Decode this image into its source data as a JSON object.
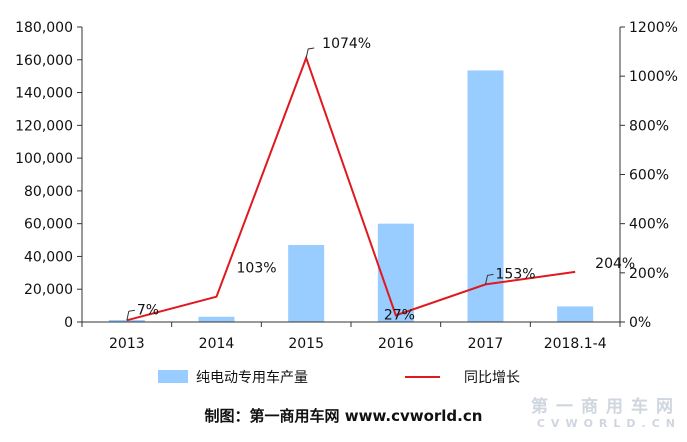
{
  "chart_data": {
    "type": "bar",
    "categories": [
      "2013",
      "2014",
      "2015",
      "2016",
      "2017",
      "2018.1-4"
    ],
    "series": [
      {
        "name": "纯电动专用车产量",
        "type": "bar",
        "axis": "left",
        "color": "#99ccff",
        "values": [
          1200,
          3200,
          47000,
          60000,
          153500,
          9500
        ]
      },
      {
        "name": "同比增长",
        "type": "line",
        "axis": "right",
        "color": "#e0191f",
        "values": [
          7,
          103,
          1074,
          27,
          153,
          204
        ],
        "labels": [
          "7%",
          "103%",
          "1074%",
          "27%",
          "153%",
          "204%"
        ]
      }
    ],
    "ylim": [
      0,
      180000
    ],
    "yticks": [
      0,
      20000,
      40000,
      60000,
      80000,
      100000,
      120000,
      140000,
      160000,
      180000
    ],
    "ytick_labels": [
      "0",
      "20,000",
      "40,000",
      "60,000",
      "80,000",
      "100,000",
      "120,000",
      "140,000",
      "160,000",
      "180,000"
    ],
    "y2lim": [
      0,
      1200
    ],
    "y2ticks": [
      0,
      200,
      400,
      600,
      800,
      1000,
      1200
    ],
    "y2tick_labels": [
      "0%",
      "200%",
      "400%",
      "600%",
      "800%",
      "1000%",
      "1200%"
    ],
    "legend_position": "bottom",
    "grid": false
  },
  "footer": {
    "text": "制图：第一商用车网 www.cvworld.cn"
  },
  "watermark": {
    "cn": "第一商用车网",
    "en": "CVWORLD.CN"
  }
}
